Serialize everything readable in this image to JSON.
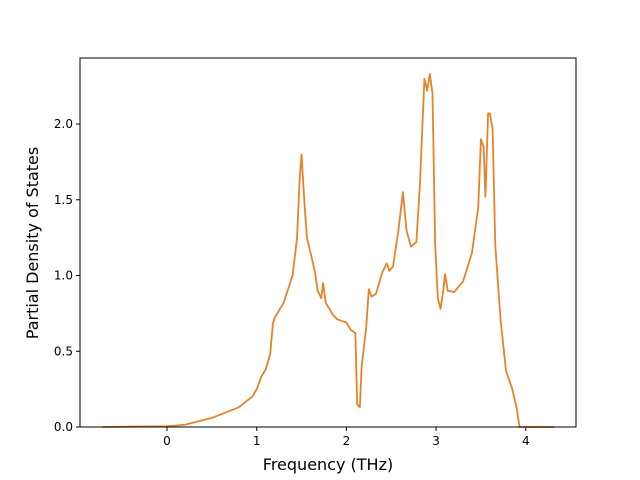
{
  "chart_data": {
    "type": "line",
    "xlabel": "Frequency (THz)",
    "ylabel": "Partial Density of States",
    "x": [
      -0.72,
      0,
      0.2,
      0.5,
      0.8,
      0.95,
      1.0,
      1.05,
      1.1,
      1.15,
      1.18,
      1.2,
      1.3,
      1.4,
      1.45,
      1.48,
      1.5,
      1.53,
      1.56,
      1.62,
      1.65,
      1.68,
      1.72,
      1.74,
      1.77,
      1.85,
      1.9,
      2.0,
      2.05,
      2.1,
      2.12,
      2.15,
      2.17,
      2.22,
      2.25,
      2.28,
      2.33,
      2.4,
      2.45,
      2.48,
      2.52,
      2.58,
      2.63,
      2.67,
      2.72,
      2.78,
      2.82,
      2.87,
      2.9,
      2.93,
      2.96,
      2.99,
      3.02,
      3.05,
      3.08,
      3.1,
      3.13,
      3.2,
      3.3,
      3.4,
      3.47,
      3.5,
      3.53,
      3.55,
      3.58,
      3.6,
      3.63,
      3.66,
      3.72,
      3.78,
      3.85,
      3.9,
      3.93,
      4.32
    ],
    "series": [
      {
        "color": "#e8822a",
        "values": [
          0,
          0.005,
          0.015,
          0.06,
          0.13,
          0.2,
          0.25,
          0.33,
          0.38,
          0.48,
          0.68,
          0.72,
          0.82,
          1.0,
          1.25,
          1.65,
          1.8,
          1.5,
          1.25,
          1.1,
          1.02,
          0.9,
          0.85,
          0.95,
          0.82,
          0.74,
          0.71,
          0.69,
          0.64,
          0.62,
          0.15,
          0.13,
          0.4,
          0.65,
          0.91,
          0.86,
          0.88,
          1.02,
          1.08,
          1.03,
          1.06,
          1.3,
          1.55,
          1.3,
          1.19,
          1.22,
          1.6,
          2.3,
          2.22,
          2.33,
          2.2,
          1.2,
          0.85,
          0.78,
          0.9,
          1.01,
          0.9,
          0.89,
          0.96,
          1.15,
          1.45,
          1.9,
          1.85,
          1.52,
          2.07,
          2.07,
          1.97,
          1.2,
          0.7,
          0.37,
          0.25,
          0.12,
          0,
          0
        ]
      }
    ],
    "xlim": [
      -0.97,
      4.56
    ],
    "ylim": [
      0,
      2.436
    ],
    "xticks": [
      0,
      1,
      2,
      3,
      4
    ],
    "yticks": [
      {
        "value": 0,
        "label": "0.0"
      },
      {
        "value": 0.5,
        "label": "0.5"
      },
      {
        "value": 1,
        "label": "1.0"
      },
      {
        "value": 1.5,
        "label": "1.5"
      },
      {
        "value": 2,
        "label": "2.0"
      }
    ]
  }
}
